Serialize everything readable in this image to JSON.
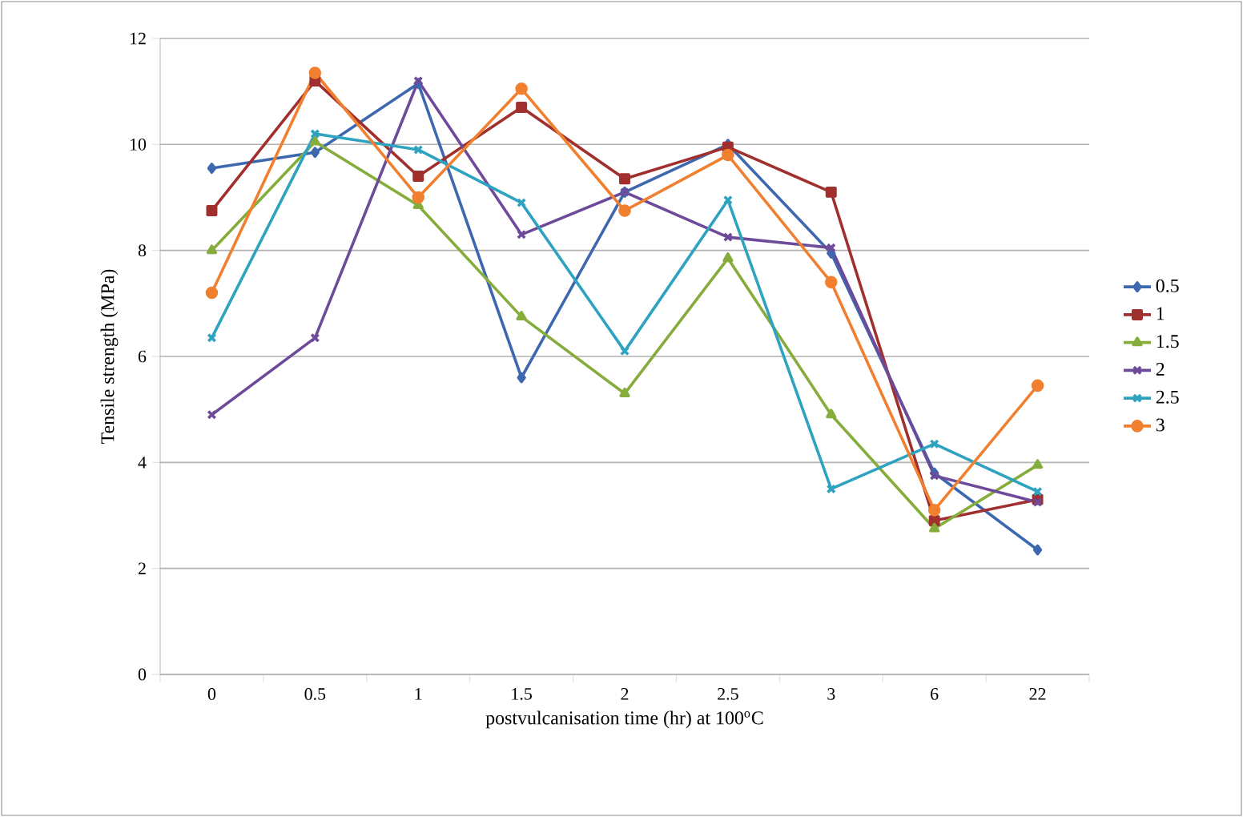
{
  "chart_data": {
    "type": "line",
    "xlabel": "postvulcanisation time (hr) at 100$^{o}$C",
    "ylabel": "Tensile strength (MPa)",
    "categories": [
      "0",
      "0.5",
      "1",
      "1.5",
      "2",
      "2.5",
      "3",
      "6",
      "22"
    ],
    "ylim": [
      0,
      12
    ],
    "yticks": [
      0,
      2,
      4,
      6,
      8,
      10,
      12
    ],
    "grid": "y",
    "legend": "right",
    "series": [
      {
        "name": "0.5",
        "color": "#3d68b0",
        "marker": "diamond",
        "values": [
          9.55,
          9.85,
          11.15,
          5.6,
          9.1,
          10.0,
          7.95,
          3.8,
          2.35
        ]
      },
      {
        "name": "1",
        "color": "#a0302e",
        "marker": "square",
        "values": [
          8.75,
          11.2,
          9.4,
          10.7,
          9.35,
          9.95,
          9.1,
          2.9,
          3.3
        ]
      },
      {
        "name": "1.5",
        "color": "#86ad3c",
        "marker": "triangle",
        "values": [
          8.0,
          10.05,
          8.85,
          6.75,
          5.3,
          7.85,
          4.9,
          2.75,
          3.95
        ]
      },
      {
        "name": "2",
        "color": "#6e4a9a",
        "marker": "cross",
        "values": [
          4.9,
          6.35,
          11.2,
          8.3,
          9.1,
          8.25,
          8.05,
          3.75,
          3.25
        ]
      },
      {
        "name": "2.5",
        "color": "#2ea3c0",
        "marker": "cross",
        "values": [
          6.35,
          10.2,
          9.9,
          8.9,
          6.1,
          8.95,
          3.5,
          4.35,
          3.45
        ]
      },
      {
        "name": "3",
        "color": "#f08030",
        "marker": "circle",
        "values": [
          7.2,
          11.35,
          9.0,
          11.05,
          8.75,
          9.8,
          7.4,
          3.1,
          5.45
        ]
      }
    ]
  }
}
